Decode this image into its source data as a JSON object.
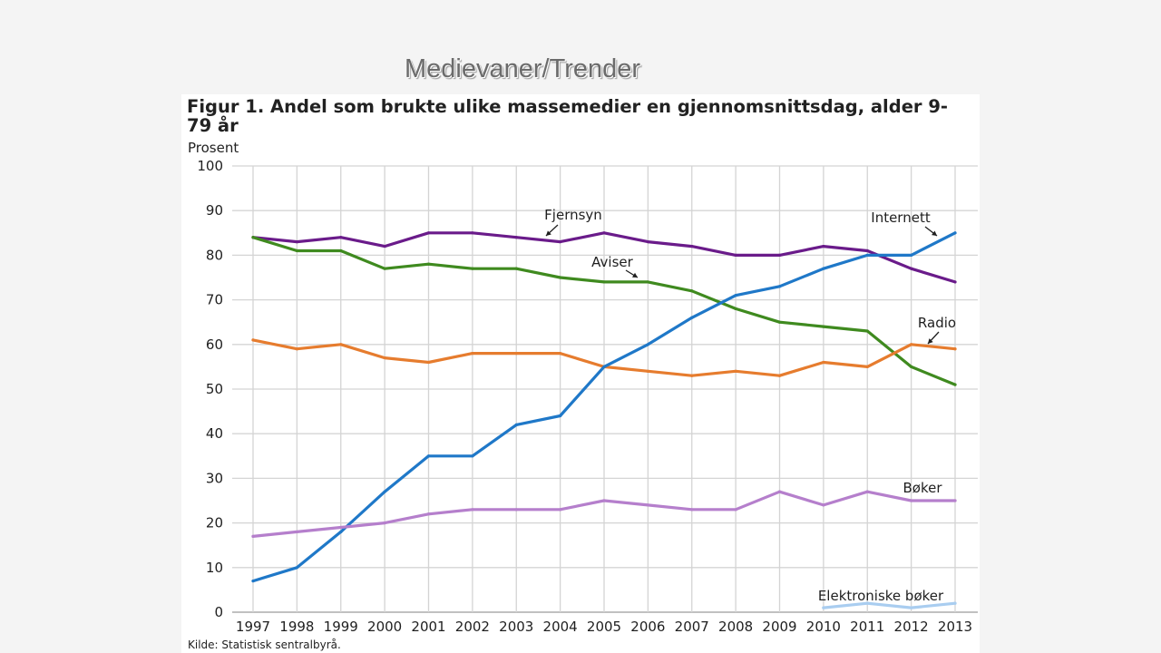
{
  "slide": {
    "title": "Medievaner/Trender"
  },
  "chart_data": {
    "type": "line",
    "title": "Figur 1. Andel som brukte ulike massemedier en gjennomsnittsdag, alder 9-79 år",
    "ylabel": "Prosent",
    "xlabel": "",
    "source": "Kilde: Statistisk sentralbyrå.",
    "x": [
      1997,
      1998,
      1999,
      2000,
      2001,
      2002,
      2003,
      2004,
      2005,
      2006,
      2007,
      2008,
      2009,
      2010,
      2011,
      2012,
      2013
    ],
    "ylim": [
      0,
      100
    ],
    "yticks": [
      0,
      10,
      20,
      30,
      40,
      50,
      60,
      70,
      80,
      90,
      100
    ],
    "grid": true,
    "series": [
      {
        "name": "Fjernsyn",
        "color": "#6a1b8a",
        "values": [
          84,
          83,
          84,
          82,
          85,
          85,
          84,
          83,
          85,
          83,
          82,
          80,
          80,
          82,
          81,
          77,
          74
        ]
      },
      {
        "name": "Aviser",
        "color": "#3f8a1f",
        "values": [
          84,
          81,
          81,
          77,
          78,
          77,
          77,
          75,
          74,
          74,
          72,
          68,
          65,
          64,
          63,
          55,
          51
        ]
      },
      {
        "name": "Radio",
        "color": "#e67c2e",
        "values": [
          61,
          59,
          60,
          57,
          56,
          58,
          58,
          58,
          55,
          54,
          53,
          54,
          53,
          56,
          55,
          60,
          59
        ]
      },
      {
        "name": "Internett",
        "color": "#1f78c8",
        "values": [
          7,
          10,
          18,
          27,
          35,
          35,
          42,
          44,
          55,
          60,
          66,
          71,
          73,
          77,
          80,
          80,
          85
        ]
      },
      {
        "name": "Bøker",
        "color": "#b57fcc",
        "values": [
          17,
          18,
          19,
          20,
          22,
          23,
          23,
          23,
          25,
          24,
          23,
          23,
          27,
          24,
          27,
          25,
          25
        ]
      },
      {
        "name": "Elektroniske bøker",
        "color": "#a9cdf0",
        "values": [
          null,
          null,
          null,
          null,
          null,
          null,
          null,
          null,
          null,
          null,
          null,
          null,
          null,
          1,
          2,
          1,
          2
        ]
      }
    ],
    "annotations": [
      "Fjernsyn",
      "Aviser",
      "Internett",
      "Radio",
      "Bøker",
      "Elektroniske bøker"
    ]
  }
}
